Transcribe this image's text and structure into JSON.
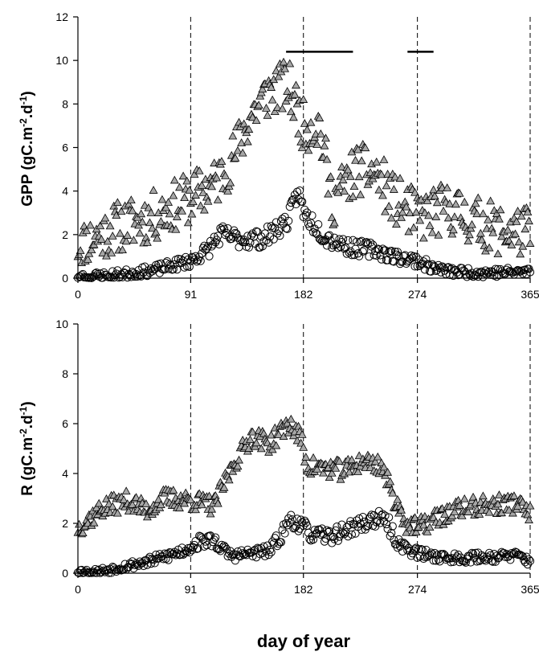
{
  "figure": {
    "xlabel": "day of year"
  },
  "chart_data": [
    {
      "type": "scatter",
      "ylabel": "GPP (gC.m^-2.d^-1)",
      "ylabel_parts": {
        "base": "GPP (gC.m",
        "exp1": "-2",
        "mid": ".d",
        "exp2": "-1",
        "tail": ")"
      },
      "xlim": [
        0,
        365
      ],
      "ylim": [
        0,
        12
      ],
      "x_ticks": [
        0,
        91,
        182,
        274,
        365
      ],
      "y_ticks": [
        0,
        2,
        4,
        6,
        8,
        10,
        12
      ],
      "grid": false,
      "vlines": [
        91,
        182,
        274,
        365
      ],
      "hbars": [
        {
          "x1": 168,
          "x2": 222,
          "y": 10.4
        },
        {
          "x1": 266,
          "x2": 287,
          "y": 10.4
        }
      ],
      "series_style": [
        {
          "marker": "triangle",
          "fill": "#a6a6a6",
          "stroke": "#000000"
        },
        {
          "marker": "circle",
          "fill": "none",
          "stroke": "#000000"
        }
      ],
      "series_envelopes": [
        {
          "points": [
            [
              0,
              1.5
            ],
            [
              30,
              2.3
            ],
            [
              60,
              2.8
            ],
            [
              91,
              3.7
            ],
            [
              110,
              4.3
            ],
            [
              125,
              5.5
            ],
            [
              140,
              7.5
            ],
            [
              155,
              8.6
            ],
            [
              170,
              8.8
            ],
            [
              182,
              7.0
            ],
            [
              195,
              7.0
            ],
            [
              205,
              3.5
            ],
            [
              225,
              5.0
            ],
            [
              240,
              4.8
            ],
            [
              255,
              3.6
            ],
            [
              274,
              2.8
            ],
            [
              300,
              3.2
            ],
            [
              320,
              2.6
            ],
            [
              340,
              2.2
            ],
            [
              365,
              2.1
            ]
          ],
          "spread": 1.2,
          "seed": 11
        },
        {
          "points": [
            [
              0,
              0.05
            ],
            [
              30,
              0.15
            ],
            [
              60,
              0.35
            ],
            [
              91,
              0.8
            ],
            [
              105,
              1.3
            ],
            [
              115,
              2.0
            ],
            [
              130,
              1.8
            ],
            [
              150,
              1.8
            ],
            [
              170,
              2.7
            ],
            [
              178,
              4.0
            ],
            [
              182,
              3.0
            ],
            [
              200,
              1.9
            ],
            [
              220,
              1.4
            ],
            [
              240,
              1.3
            ],
            [
              255,
              1.0
            ],
            [
              274,
              0.8
            ],
            [
              285,
              0.5
            ],
            [
              300,
              0.3
            ],
            [
              330,
              0.25
            ],
            [
              365,
              0.3
            ]
          ],
          "spread": 0.45,
          "seed": 23
        }
      ]
    },
    {
      "type": "scatter",
      "ylabel": "R (gC.m^-2.d^-1)",
      "ylabel_parts": {
        "base": "R (gC.m",
        "exp1": "-2",
        "mid": ".d",
        "exp2": "-1",
        "tail": ")"
      },
      "xlim": [
        0,
        365
      ],
      "ylim": [
        0,
        10
      ],
      "x_ticks": [
        0,
        91,
        182,
        274,
        365
      ],
      "y_ticks": [
        0,
        2,
        4,
        6,
        8,
        10
      ],
      "grid": false,
      "vlines": [
        91,
        182,
        274,
        365
      ],
      "series_style": [
        {
          "marker": "triangle",
          "fill": "#a6a6a6",
          "stroke": "#000000"
        },
        {
          "marker": "circle",
          "fill": "none",
          "stroke": "#000000"
        }
      ],
      "series_envelopes": [
        {
          "points": [
            [
              0,
              1.8
            ],
            [
              20,
              2.6
            ],
            [
              40,
              2.9
            ],
            [
              55,
              2.5
            ],
            [
              70,
              3.0
            ],
            [
              91,
              2.9
            ],
            [
              110,
              2.7
            ],
            [
              125,
              4.3
            ],
            [
              140,
              5.5
            ],
            [
              155,
              5.2
            ],
            [
              170,
              6.0
            ],
            [
              180,
              5.4
            ],
            [
              185,
              4.3
            ],
            [
              200,
              4.2
            ],
            [
              215,
              4.1
            ],
            [
              230,
              4.5
            ],
            [
              245,
              4.3
            ],
            [
              255,
              3.0
            ],
            [
              265,
              2.0
            ],
            [
              274,
              1.8
            ],
            [
              290,
              2.2
            ],
            [
              310,
              2.6
            ],
            [
              330,
              2.7
            ],
            [
              355,
              2.8
            ],
            [
              365,
              2.3
            ]
          ],
          "spread": 0.4,
          "seed": 37
        },
        {
          "points": [
            [
              0,
              0.1
            ],
            [
              10,
              0.0
            ],
            [
              30,
              0.2
            ],
            [
              60,
              0.5
            ],
            [
              85,
              0.9
            ],
            [
              100,
              1.3
            ],
            [
              110,
              1.3
            ],
            [
              118,
              0.9
            ],
            [
              125,
              0.7
            ],
            [
              140,
              0.8
            ],
            [
              155,
              0.9
            ],
            [
              165,
              1.6
            ],
            [
              172,
              2.2
            ],
            [
              180,
              1.9
            ],
            [
              190,
              1.5
            ],
            [
              205,
              1.5
            ],
            [
              220,
              1.8
            ],
            [
              240,
              2.2
            ],
            [
              250,
              2.0
            ],
            [
              258,
              1.2
            ],
            [
              274,
              0.8
            ],
            [
              300,
              0.6
            ],
            [
              330,
              0.65
            ],
            [
              355,
              0.7
            ],
            [
              365,
              0.5
            ]
          ],
          "spread": 0.35,
          "seed": 53
        }
      ]
    }
  ]
}
